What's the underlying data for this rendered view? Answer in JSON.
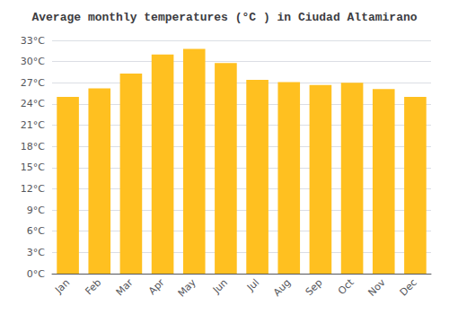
{
  "chart_data": {
    "type": "bar",
    "title": "Average monthly temperatures (°C ) in Ciudad Altamirano",
    "categories": [
      "Jan",
      "Feb",
      "Mar",
      "Apr",
      "May",
      "Jun",
      "Jul",
      "Aug",
      "Sep",
      "Oct",
      "Nov",
      "Dec"
    ],
    "values": [
      25.0,
      26.2,
      28.3,
      31.0,
      31.8,
      29.8,
      27.4,
      27.1,
      26.7,
      27.0,
      26.1,
      25.0
    ],
    "color": "#FFC020",
    "ylim": [
      0,
      33
    ],
    "yticks": [
      {
        "value": 0,
        "label": "0°C"
      },
      {
        "value": 3,
        "label": "3°C"
      },
      {
        "value": 6,
        "label": "6°C"
      },
      {
        "value": 9,
        "label": "9°C"
      },
      {
        "value": 12,
        "label": "12°C"
      },
      {
        "value": 15,
        "label": "15°C"
      },
      {
        "value": 18,
        "label": "18°C"
      },
      {
        "value": 21,
        "label": "21°C"
      },
      {
        "value": 24,
        "label": "24°C"
      },
      {
        "value": 27,
        "label": "27°C"
      },
      {
        "value": 30,
        "label": "30°C"
      },
      {
        "value": 33,
        "label": "33°C"
      }
    ],
    "grid": true
  }
}
